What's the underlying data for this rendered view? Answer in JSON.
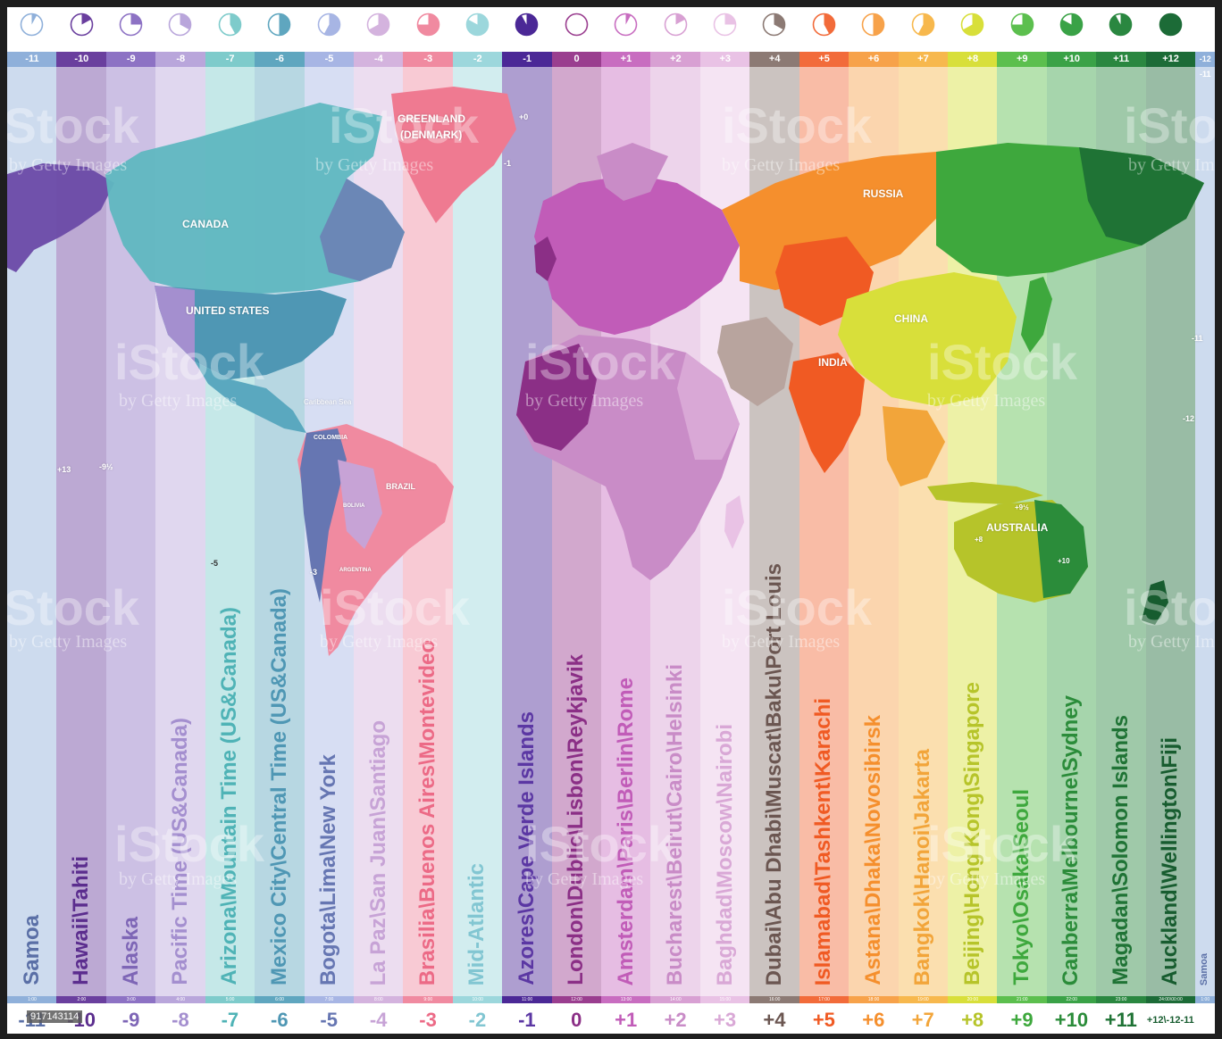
{
  "zones": [
    {
      "top": "-11",
      "bottom": "-11",
      "time": "1:00",
      "city": "Samoa",
      "color": "#8fb0da",
      "tcolor": "#5a6fa6",
      "fill": 0.08
    },
    {
      "top": "-10",
      "bottom": "-10",
      "time": "2:00",
      "city": "Hawaii\\Tahiti",
      "color": "#6a3f9e",
      "tcolor": "#5b2d8e",
      "fill": 0.17
    },
    {
      "top": "-9",
      "bottom": "-9",
      "time": "3:00",
      "city": "Alaska",
      "color": "#8d72c4",
      "tcolor": "#7e66b6",
      "fill": 0.25
    },
    {
      "top": "-8",
      "bottom": "-8",
      "time": "4:00",
      "city": "Pacific Time (US&Canada)",
      "color": "#b9a6db",
      "tcolor": "#a48fcf",
      "fill": 0.33
    },
    {
      "top": "-7",
      "bottom": "-7",
      "time": "5:00",
      "city": "Arizona\\Mountain Time (US&Canada)",
      "color": "#7ecbcb",
      "tcolor": "#4fb3b6",
      "fill": 0.42
    },
    {
      "top": "-6",
      "bottom": "-6",
      "time": "6:00",
      "city": "Mexico City\\Central Time (US&Canada)",
      "color": "#5fa6bf",
      "tcolor": "#4f97b4",
      "fill": 0.5
    },
    {
      "top": "-5",
      "bottom": "-5",
      "time": "7:00",
      "city": "Bogota\\Lima\\New York",
      "color": "#a7b5e4",
      "tcolor": "#6676b2",
      "fill": 0.58
    },
    {
      "top": "-4",
      "bottom": "-4",
      "time": "8:00",
      "city": "La Paz\\San Juan\\Santiago",
      "color": "#d4b3de",
      "tcolor": "#c7a3d6",
      "fill": 0.67
    },
    {
      "top": "-3",
      "bottom": "-3",
      "time": "9:00",
      "city": "Brasilia\\Buenos Aires\\Montevideo",
      "color": "#f08aa0",
      "tcolor": "#ec6a86",
      "fill": 0.75
    },
    {
      "top": "-2",
      "bottom": "-2",
      "time": "10:00",
      "city": "Mid-Atlantic",
      "color": "#9cd7dc",
      "tcolor": "#82c6d2",
      "fill": 0.83
    },
    {
      "top": "-1",
      "bottom": "-1",
      "time": "11:00",
      "city": "Azores\\Cape Verde Islands",
      "color": "#4b2896",
      "tcolor": "#5b37a3",
      "fill": 0.92
    },
    {
      "top": "0",
      "bottom": "0",
      "time": "12:00",
      "city": "London\\Dublic\\Lisbon\\Reykjavik",
      "color": "#9a3e8f",
      "tcolor": "#8b2f86",
      "fill": 0.0
    },
    {
      "top": "+1",
      "bottom": "+1",
      "time": "13:00",
      "city": "Amsterdam\\Paris\\Berlin\\Rome",
      "color": "#c86dc0",
      "tcolor": "#c15cb8",
      "fill": 0.08
    },
    {
      "top": "+2",
      "bottom": "+2",
      "time": "14:00",
      "city": "Bucharest\\Beirut\\Cairo\\Helsinki",
      "color": "#d8a0d3",
      "tcolor": "#c98cc7",
      "fill": 0.17
    },
    {
      "top": "+3",
      "bottom": "+3",
      "time": "15:00",
      "city": "Baghdad\\Moscow\\Nairobi",
      "color": "#e9c2e5",
      "tcolor": "#d9a8d6",
      "fill": 0.25
    },
    {
      "top": "+4",
      "bottom": "+4",
      "time": "16:00",
      "city": "Dubai\\Abu Dhabi\\Muscat\\Baku\\Port Louis",
      "color": "#8c7a74",
      "tcolor": "#6b5651",
      "fill": 0.33
    },
    {
      "top": "+5",
      "bottom": "+5",
      "time": "17:00",
      "city": "Islamabad\\Tashkent\\Karachi",
      "color": "#f26b3a",
      "tcolor": "#f05a23",
      "fill": 0.42
    },
    {
      "top": "+6",
      "bottom": "+6",
      "time": "18:00",
      "city": "Astana\\Dhaka\\Novosibirsk",
      "color": "#f7a24a",
      "tcolor": "#f58f2d",
      "fill": 0.5
    },
    {
      "top": "+7",
      "bottom": "+7",
      "time": "19:00",
      "city": "Bangkok\\Hanoi\\Jakarta",
      "color": "#f7b84d",
      "tcolor": "#f2a53a",
      "fill": 0.58
    },
    {
      "top": "+8",
      "bottom": "+8",
      "time": "20:00",
      "city": "Beijing\\Hong Kong\\Singapore",
      "color": "#d8df3a",
      "tcolor": "#b6c42a",
      "fill": 0.67
    },
    {
      "top": "+9",
      "bottom": "+9",
      "time": "21:00",
      "city": "Tokyo\\Osaka\\Seoul",
      "color": "#5cbf4e",
      "tcolor": "#3ea83d",
      "fill": 0.75
    },
    {
      "top": "+10",
      "bottom": "+10",
      "time": "22:00",
      "city": "Canberra\\Melbourne\\Sydney",
      "color": "#3aa247",
      "tcolor": "#2b8c3a",
      "fill": 0.83
    },
    {
      "top": "+11",
      "bottom": "+11",
      "time": "23:00",
      "city": "Magadan\\Solomon Islands",
      "color": "#2a8740",
      "tcolor": "#1f7335",
      "fill": 0.92
    },
    {
      "top": "+12",
      "bottom": "+12\\-12-11",
      "time": "24:00\\00:00",
      "city": "Auckland\\Wellington\\Fiji",
      "color": "#1c6b37",
      "tcolor": "#175c2f",
      "fill": 1.0
    },
    {
      "top": "-12 -11",
      "bottom": "",
      "time": "1:00",
      "city": "Samoa",
      "color": "#8fb0da",
      "tcolor": "#5a6fa6",
      "fill": 0.08
    }
  ],
  "map_labels": {
    "greenland": "GREENLAND",
    "denmark": "(DENMARK)",
    "canada": "CANADA",
    "united_states": "UNITED STATES",
    "russia": "RUSSIA",
    "china": "CHINA",
    "india": "INDIA",
    "australia": "AUSTRALIA",
    "brazil": "BRAZIL",
    "colombia": "COLOMBIA",
    "bolivia": "BOLIVIA",
    "argentina": "ARGENTINA",
    "caribbean": "Caribbean Sea",
    "plus0": "+0",
    "minus1": "-1",
    "plus13": "+13",
    "minus9half": "-9½",
    "minus3": "-3",
    "minus5": "-5",
    "minus11": "-11",
    "minus12": "-12",
    "plus9half": "+9½",
    "plus8": "+8",
    "plus10": "+10"
  },
  "watermark": {
    "brand": "iStock",
    "sub": "by Getty Images"
  },
  "image_id": "917143114"
}
